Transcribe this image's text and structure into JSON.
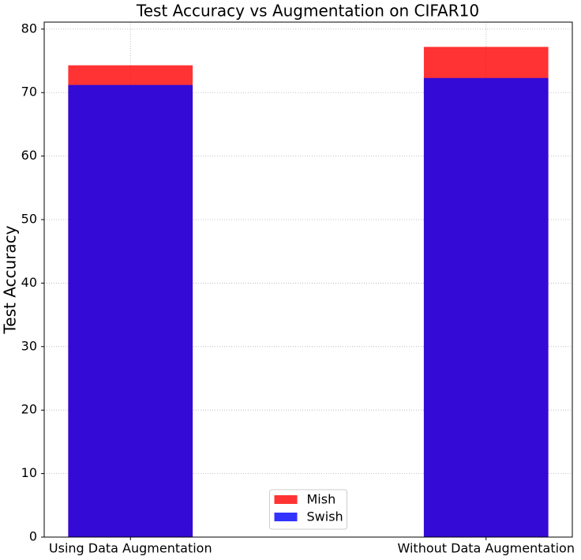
{
  "chart_data": {
    "type": "bar",
    "title": "Test Accuracy vs Augmentation on CIFAR10",
    "y_label": "Test Accuracy",
    "categories": [
      "Using Data Augmentation",
      "Without Data Augmentation"
    ],
    "series": [
      {
        "name": "Mish",
        "color": "#ff0000",
        "values": [
          74.3,
          77.2
        ]
      },
      {
        "name": "Swish",
        "color": "#0000ff",
        "values": [
          71.2,
          72.3
        ]
      }
    ],
    "opacity": 0.8,
    "overlay": true,
    "ylim": [
      0,
      81.1
    ],
    "yticks": [
      0,
      10,
      20,
      30,
      40,
      50,
      60,
      70,
      80
    ],
    "grid": true,
    "legend": "lower center"
  }
}
